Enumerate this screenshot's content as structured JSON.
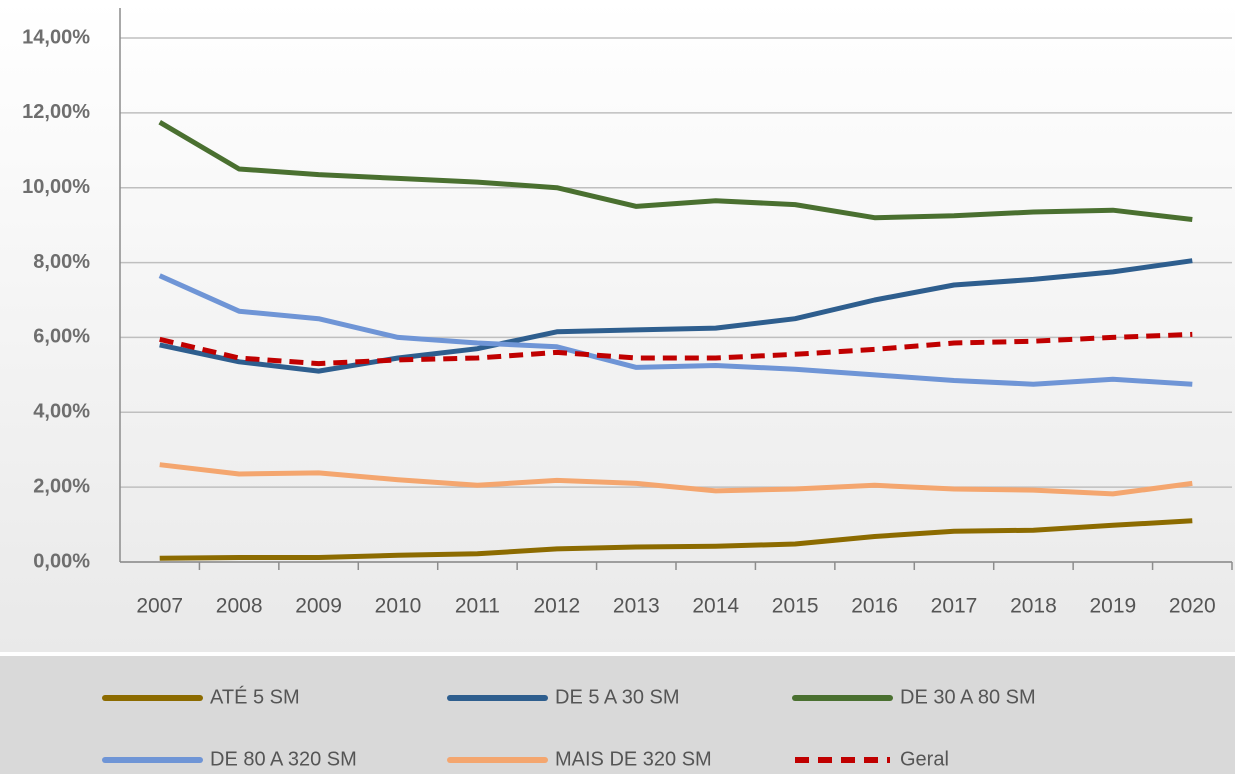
{
  "chart_data": {
    "type": "line",
    "categories": [
      "2007",
      "2008",
      "2009",
      "2010",
      "2011",
      "2012",
      "2013",
      "2014",
      "2015",
      "2016",
      "2017",
      "2018",
      "2019",
      "2020"
    ],
    "series": [
      {
        "name": "ATÉ 5 SM",
        "color": "#8c6b00",
        "values": [
          0.1,
          0.12,
          0.12,
          0.18,
          0.22,
          0.35,
          0.4,
          0.42,
          0.48,
          0.68,
          0.82,
          0.85,
          0.98,
          1.1
        ]
      },
      {
        "name": "DE 5 A 30 SM",
        "color": "#2e5e8e",
        "values": [
          5.8,
          5.35,
          5.1,
          5.45,
          5.7,
          6.15,
          6.2,
          6.25,
          6.5,
          7.0,
          7.4,
          7.55,
          7.75,
          8.05
        ]
      },
      {
        "name": "DE 30 A 80 SM",
        "color": "#4a7030",
        "values": [
          11.75,
          10.5,
          10.35,
          10.25,
          10.15,
          10.0,
          9.5,
          9.65,
          9.55,
          9.2,
          9.25,
          9.35,
          9.4,
          9.15
        ]
      },
      {
        "name": "DE 80 A 320 SM",
        "color": "#6f95d6",
        "values": [
          7.65,
          6.7,
          6.5,
          6.0,
          5.85,
          5.75,
          5.2,
          5.25,
          5.15,
          5.0,
          4.85,
          4.75,
          4.88,
          4.75
        ]
      },
      {
        "name": "MAIS DE 320 SM",
        "color": "#f4a66f",
        "values": [
          2.6,
          2.35,
          2.38,
          2.2,
          2.05,
          2.18,
          2.1,
          1.9,
          1.95,
          2.05,
          1.95,
          1.92,
          1.82,
          2.1
        ]
      },
      {
        "name": "Geral",
        "color": "#c00000",
        "dashed": true,
        "values": [
          5.95,
          5.45,
          5.3,
          5.4,
          5.45,
          5.6,
          5.45,
          5.45,
          5.55,
          5.68,
          5.85,
          5.9,
          6.0,
          6.08
        ]
      }
    ],
    "ylim": [
      0,
      14
    ],
    "yticks": [
      {
        "value": 0,
        "label": "0,00%"
      },
      {
        "value": 2,
        "label": "2,00%"
      },
      {
        "value": 4,
        "label": "4,00%"
      },
      {
        "value": 6,
        "label": "6,00%"
      },
      {
        "value": 8,
        "label": "8,00%"
      },
      {
        "value": 10,
        "label": "10,00%"
      },
      {
        "value": 12,
        "label": "12,00%"
      },
      {
        "value": 14,
        "label": "14,00%"
      }
    ],
    "grid": true,
    "legend": "bottom"
  }
}
